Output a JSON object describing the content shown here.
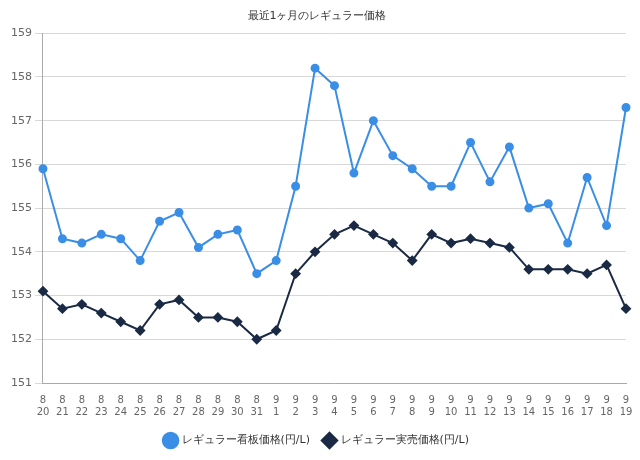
{
  "chart_data": {
    "type": "line",
    "title": "最近1ヶ月のレギュラー価格",
    "categories": [
      [
        "8",
        "20"
      ],
      [
        "8",
        "21"
      ],
      [
        "8",
        "22"
      ],
      [
        "8",
        "23"
      ],
      [
        "8",
        "24"
      ],
      [
        "8",
        "25"
      ],
      [
        "8",
        "26"
      ],
      [
        "8",
        "27"
      ],
      [
        "8",
        "28"
      ],
      [
        "8",
        "29"
      ],
      [
        "8",
        "30"
      ],
      [
        "8",
        "31"
      ],
      [
        "9",
        "1"
      ],
      [
        "9",
        "2"
      ],
      [
        "9",
        "3"
      ],
      [
        "9",
        "4"
      ],
      [
        "9",
        "5"
      ],
      [
        "9",
        "6"
      ],
      [
        "9",
        "7"
      ],
      [
        "9",
        "8"
      ],
      [
        "9",
        "9"
      ],
      [
        "9",
        "10"
      ],
      [
        "9",
        "11"
      ],
      [
        "9",
        "12"
      ],
      [
        "9",
        "13"
      ],
      [
        "9",
        "14"
      ],
      [
        "9",
        "15"
      ],
      [
        "9",
        "16"
      ],
      [
        "9",
        "17"
      ],
      [
        "9",
        "18"
      ],
      [
        "9",
        "19"
      ]
    ],
    "series": [
      {
        "name": "レギュラー看板価格(円/L)",
        "color": "#3a8ee6",
        "marker": "circle",
        "values": [
          155.9,
          154.3,
          154.2,
          154.4,
          154.3,
          153.8,
          154.7,
          154.9,
          154.1,
          154.4,
          154.5,
          153.5,
          153.8,
          155.5,
          158.2,
          157.8,
          155.8,
          157.0,
          156.2,
          155.9,
          155.5,
          155.5,
          156.5,
          155.6,
          156.4,
          155.0,
          155.1,
          154.2,
          155.7,
          154.6,
          157.3
        ]
      },
      {
        "name": "レギュラー実売価格(円/L)",
        "color": "#1b2a44",
        "marker": "diamond",
        "values": [
          153.1,
          152.7,
          152.8,
          152.6,
          152.4,
          152.2,
          152.8,
          152.9,
          152.5,
          152.5,
          152.4,
          152.0,
          152.2,
          153.5,
          154.0,
          154.4,
          154.6,
          154.4,
          154.2,
          153.8,
          154.4,
          154.2,
          154.3,
          154.2,
          154.1,
          153.6,
          153.6,
          153.6,
          153.5,
          153.7,
          152.7
        ]
      }
    ],
    "ylim": [
      151,
      159
    ],
    "yticks": [
      151,
      152,
      153,
      154,
      155,
      156,
      157,
      158,
      159
    ],
    "grid": true,
    "legend": "bottom"
  }
}
